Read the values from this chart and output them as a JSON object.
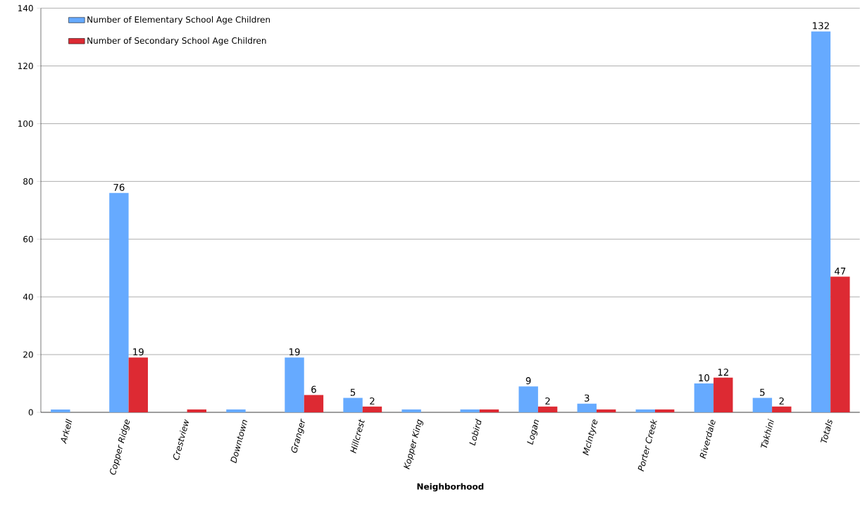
{
  "chart_data": {
    "type": "bar",
    "xlabel": "Neighborhood",
    "categories": [
      "Arkell",
      "Copper Ridge",
      "Crestview",
      "Downtown",
      "Granger",
      "Hillcrest",
      "Kopper King",
      "Lobird",
      "Logan",
      "McIntyre",
      "Porter Creek",
      "Riverdale",
      "Takhini",
      "Totals"
    ],
    "series": [
      {
        "name": "Number of Elementary School Age Children",
        "color": "#66aaff",
        "values": [
          1,
          76,
          0,
          1,
          19,
          5,
          1,
          1,
          9,
          3,
          1,
          10,
          5,
          132
        ],
        "value_labels": [
          null,
          "76",
          null,
          null,
          "19",
          "5",
          null,
          null,
          "9",
          "3",
          null,
          "10",
          "5",
          "132"
        ]
      },
      {
        "name": "Number of Secondary School Age Children",
        "color": "#dd2a33",
        "values": [
          0,
          19,
          1,
          0,
          6,
          2,
          0,
          1,
          2,
          1,
          1,
          12,
          2,
          47
        ],
        "value_labels": [
          null,
          "19",
          null,
          null,
          "6",
          "2",
          null,
          null,
          "2",
          null,
          null,
          "12",
          "2",
          "47"
        ]
      }
    ],
    "ylim": [
      0,
      140
    ],
    "yticks": [
      0,
      20,
      40,
      60,
      80,
      100,
      120,
      140
    ],
    "grid": "y",
    "legend": "top left"
  }
}
